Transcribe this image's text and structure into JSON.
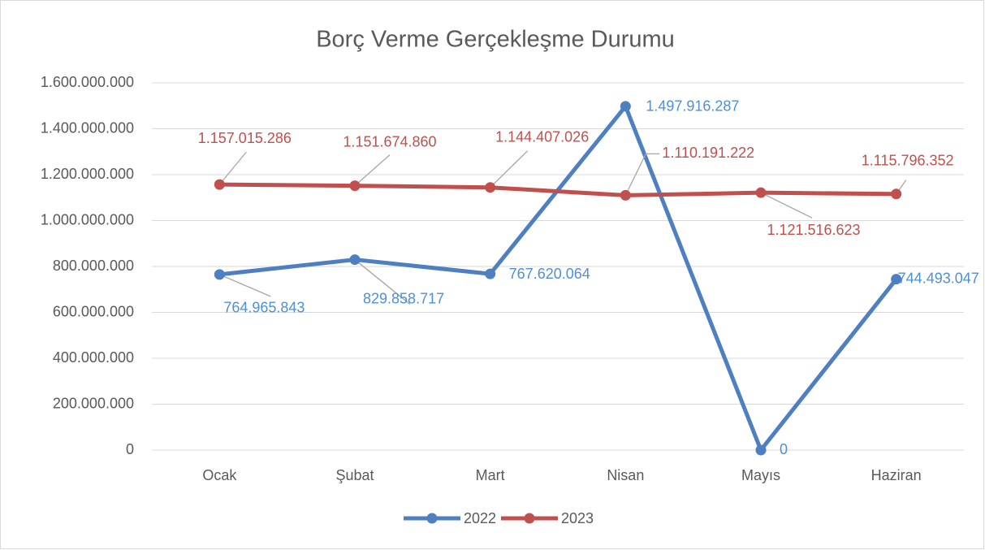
{
  "chart_data": {
    "type": "line",
    "title": "Borç Verme Gerçekleşme Durumu",
    "categories": [
      "Ocak",
      "Şubat",
      "Mart",
      "Nisan",
      "Mayıs",
      "Haziran"
    ],
    "series": [
      {
        "name": "2022",
        "color": "#4e7fc0",
        "label_color": "#4f8fd6",
        "values": [
          764965843,
          829858717,
          767620064,
          1497916287,
          0,
          744493047
        ],
        "value_labels": [
          "764.965.843",
          "829.858.717",
          "767.620.064",
          "1.497.916.287",
          "0",
          "744.493.047"
        ]
      },
      {
        "name": "2023",
        "color": "#c0504d",
        "label_color": "#c0504d",
        "values": [
          1157015286,
          1151674860,
          1144407026,
          1110191222,
          1121516623,
          1115796352
        ],
        "value_labels": [
          "1.157.015.286",
          "1.151.674.860",
          "1.144.407.026",
          "1.110.191.222",
          "1.121.516.623",
          "1.115.796.352"
        ]
      }
    ],
    "ylim": [
      0,
      1600000000
    ],
    "yticks": [
      0,
      {
        "value": 200000000,
        "label": "200.000.000"
      },
      {
        "value": 400000000,
        "label": "400.000.000"
      },
      {
        "value": 600000000,
        "label": "600.000.000"
      },
      {
        "value": 800000000,
        "label": "800.000.000"
      },
      {
        "value": 1000000000,
        "label": "1.000.000.000"
      },
      {
        "value": 1200000000,
        "label": "1.200.000.000"
      },
      {
        "value": 1400000000,
        "label": "1.400.000.000"
      },
      {
        "value": 1600000000,
        "label": "1.600.000.000"
      }
    ],
    "grid": true,
    "legend": "bottom"
  }
}
